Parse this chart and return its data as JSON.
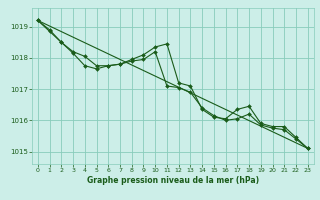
{
  "xlabel": "Graphe pression niveau de la mer (hPa)",
  "bg_color": "#cceee8",
  "grid_color": "#88ccbb",
  "line_color": "#1a5c1a",
  "marker": "D",
  "markersize": 2,
  "linewidth": 0.8,
  "ylim": [
    1014.6,
    1019.6
  ],
  "xlim": [
    -0.5,
    23.5
  ],
  "yticks": [
    1015,
    1016,
    1017,
    1018,
    1019
  ],
  "xticks": [
    0,
    1,
    2,
    3,
    4,
    5,
    6,
    7,
    8,
    9,
    10,
    11,
    12,
    13,
    14,
    15,
    16,
    17,
    18,
    19,
    20,
    21,
    22,
    23
  ],
  "series_straight": {
    "x": [
      0,
      23
    ],
    "y": [
      1019.2,
      1015.1
    ]
  },
  "series_wavy": {
    "x": [
      0,
      1,
      2,
      3,
      4,
      5,
      6,
      7,
      8,
      9,
      10,
      11,
      12,
      13,
      14,
      15,
      16,
      17,
      18,
      19,
      20,
      21,
      22,
      23
    ],
    "y": [
      1019.2,
      1018.85,
      1018.5,
      1018.15,
      1017.75,
      1017.65,
      1017.75,
      1017.8,
      1017.95,
      1018.1,
      1018.35,
      1018.45,
      1017.2,
      1017.1,
      1016.35,
      1016.1,
      1016.05,
      1016.35,
      1016.45,
      1015.9,
      1015.8,
      1015.8,
      1015.45,
      1015.1
    ]
  },
  "series_mid": {
    "x": [
      0,
      1,
      2,
      3,
      4,
      5,
      6,
      7,
      8,
      9,
      10,
      11,
      12,
      13,
      14,
      15,
      16,
      17,
      18,
      19,
      20,
      21,
      22,
      23
    ],
    "y": [
      1019.2,
      1018.9,
      1018.5,
      1018.2,
      1018.05,
      1017.75,
      1017.75,
      1017.8,
      1017.9,
      1017.95,
      1018.2,
      1017.1,
      1017.05,
      1016.9,
      1016.4,
      1016.15,
      1016.0,
      1016.05,
      1016.2,
      1015.85,
      1015.75,
      1015.7,
      1015.4,
      1015.1
    ]
  }
}
